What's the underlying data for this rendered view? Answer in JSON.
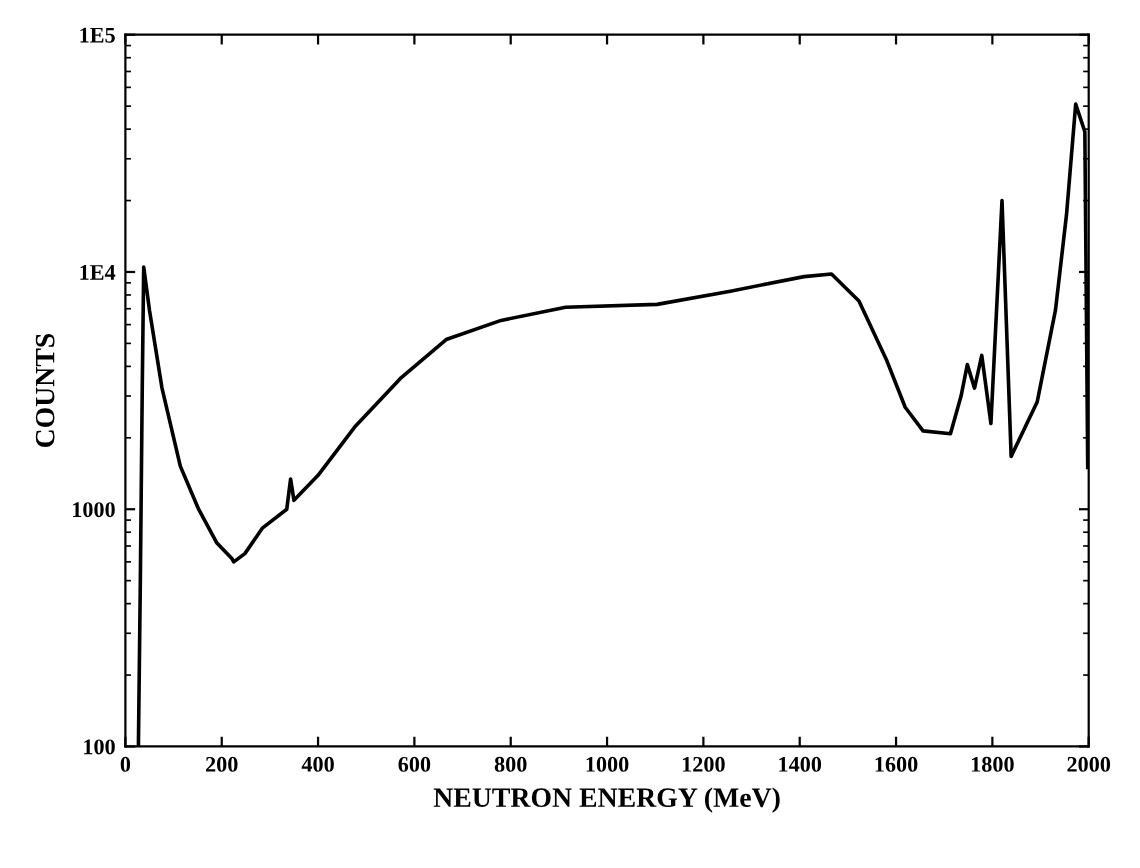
{
  "chart_data": {
    "type": "line",
    "xlabel": "NEUTRON ENERGY (MeV)",
    "ylabel": "COUNTS",
    "log": "y",
    "grid": false,
    "marker": "none",
    "line_style": "solid",
    "xlim": [
      0,
      2000
    ],
    "xticks": [
      0,
      200,
      400,
      600,
      800,
      1000,
      1200,
      1400,
      1600,
      1800,
      2000
    ],
    "ylim": [
      100,
      100000
    ],
    "yticks": [
      100,
      1000,
      {
        "value": 10000,
        "label": "1E4"
      },
      {
        "value": 100000,
        "label": "1E5"
      }
    ],
    "series": [
      {
        "color": "#000000",
        "x": [
          27,
          31,
          35,
          38,
          50,
          76,
          114,
          152,
          190,
          221,
          225,
          248,
          285,
          335,
          343,
          350,
          400,
          476,
          571,
          666,
          780,
          914,
          1104,
          1256,
          1409,
          1466,
          1523,
          1580,
          1619,
          1656,
          1713,
          1735,
          1748,
          1763,
          1778,
          1797,
          1820,
          1839,
          1893,
          1931,
          1954,
          1973,
          1992,
          1998
        ],
        "values": [
          100,
          494,
          3240,
          10500,
          6900,
          3240,
          1520,
          1000,
          720,
          620,
          600,
          650,
          835,
          1000,
          1340,
          1090,
          1390,
          2220,
          3560,
          5190,
          6250,
          7100,
          7300,
          8300,
          9560,
          9800,
          7540,
          4270,
          2690,
          2140,
          2080,
          3000,
          4070,
          3240,
          4450,
          2300,
          20000,
          1670,
          2830,
          6900,
          17500,
          51000,
          39000,
          1500
        ]
      }
    ]
  }
}
